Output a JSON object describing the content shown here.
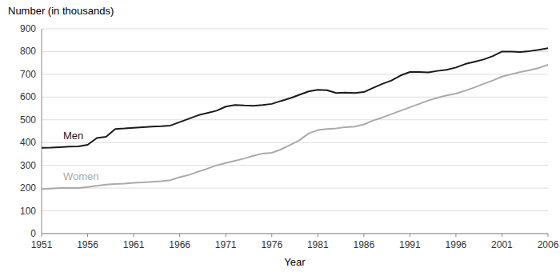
{
  "chart_data": {
    "type": "line",
    "x_label": "Year",
    "y_label": "Number (in thousands)",
    "x": [
      1951,
      1952,
      1953,
      1954,
      1955,
      1956,
      1957,
      1958,
      1959,
      1960,
      1961,
      1962,
      1963,
      1964,
      1965,
      1966,
      1967,
      1968,
      1969,
      1970,
      1971,
      1972,
      1973,
      1974,
      1975,
      1976,
      1977,
      1978,
      1979,
      1980,
      1981,
      1982,
      1983,
      1984,
      1985,
      1986,
      1987,
      1988,
      1989,
      1990,
      1991,
      1992,
      1993,
      1994,
      1995,
      1996,
      1997,
      1998,
      1999,
      2000,
      2001,
      2002,
      2003,
      2004,
      2005,
      2006
    ],
    "series": [
      {
        "name": "Men",
        "color": "#1a1a1a",
        "values": [
          377,
          378,
          380,
          382,
          383,
          390,
          420,
          425,
          460,
          462,
          465,
          468,
          470,
          472,
          475,
          490,
          505,
          520,
          530,
          540,
          558,
          565,
          563,
          562,
          565,
          570,
          583,
          595,
          610,
          625,
          632,
          630,
          618,
          620,
          618,
          622,
          640,
          658,
          673,
          695,
          710,
          710,
          708,
          715,
          720,
          730,
          745,
          755,
          765,
          780,
          800,
          800,
          798,
          802,
          808,
          815
        ]
      },
      {
        "name": "Women",
        "color": "#aaaaaa",
        "values": [
          195,
          198,
          200,
          200,
          200,
          205,
          210,
          215,
          218,
          220,
          223,
          225,
          228,
          230,
          235,
          248,
          258,
          272,
          285,
          300,
          310,
          320,
          330,
          342,
          352,
          355,
          370,
          390,
          410,
          440,
          455,
          460,
          462,
          468,
          470,
          480,
          497,
          510,
          525,
          540,
          555,
          570,
          585,
          597,
          607,
          615,
          628,
          642,
          658,
          673,
          690,
          700,
          710,
          718,
          728,
          742
        ]
      }
    ],
    "xlim": [
      1951,
      2006
    ],
    "xticks": [
      1951,
      1956,
      1961,
      1966,
      1971,
      1976,
      1981,
      1986,
      1991,
      1996,
      2001,
      2006
    ],
    "ylim": [
      0,
      900
    ],
    "yticks": [
      0,
      100,
      200,
      300,
      400,
      500,
      600,
      700,
      800,
      900
    ],
    "grid": true
  }
}
